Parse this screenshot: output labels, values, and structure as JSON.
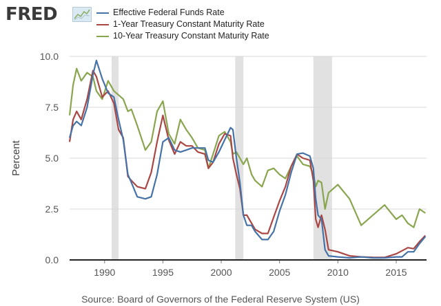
{
  "header": {
    "logo_text": "FRED",
    "logo_badge_icon": "line-chart-icon"
  },
  "source_note": "Source: Board of Governors of the Federal Reserve System (US)",
  "chart_data": {
    "type": "line",
    "title": "",
    "xlabel": "",
    "ylabel": "Percent",
    "xlim": [
      1987.0,
      2017.6
    ],
    "ylim": [
      0,
      10
    ],
    "x_ticks": [
      1990,
      1995,
      2000,
      2005,
      2010,
      2015
    ],
    "y_ticks": [
      0,
      2.5,
      5,
      7.5,
      10
    ],
    "y_tick_labels": [
      "0.0",
      "2.5",
      "5.0",
      "7.5",
      "10.0"
    ],
    "grid": "horizontal",
    "legend_position": "top",
    "recessions": [
      [
        1990.6,
        1991.2
      ],
      [
        2001.2,
        2001.9
      ],
      [
        2007.9,
        2009.5
      ]
    ],
    "series": [
      {
        "name": "Effective Federal Funds Rate",
        "color": "#4572a7",
        "x": [
          1987.0,
          1987.3,
          1987.6,
          1988.0,
          1988.5,
          1989.0,
          1989.3,
          1989.8,
          1990.3,
          1990.8,
          1991.2,
          1991.6,
          1992.0,
          1992.3,
          1992.8,
          1993.5,
          1994.0,
          1994.5,
          1995.0,
          1995.5,
          1996.0,
          1996.5,
          1997.0,
          1997.5,
          1998.0,
          1998.6,
          1998.9,
          1999.3,
          1999.8,
          2000.3,
          2000.8,
          2001.0,
          2001.3,
          2001.6,
          2001.9,
          2002.2,
          2002.6,
          2002.9,
          2003.5,
          2004.0,
          2004.5,
          2005.0,
          2005.5,
          2006.0,
          2006.5,
          2007.0,
          2007.6,
          2007.9,
          2008.1,
          2008.3,
          2008.6,
          2008.9,
          2009.2,
          2010.0,
          2011.0,
          2012.0,
          2013.0,
          2014.0,
          2015.0,
          2015.5,
          2016.0,
          2016.5,
          2017.0,
          2017.5
        ],
        "values": [
          6.0,
          6.6,
          6.8,
          6.6,
          7.5,
          9.1,
          9.8,
          8.9,
          8.2,
          8.0,
          6.9,
          5.9,
          4.2,
          3.8,
          3.1,
          3.0,
          3.1,
          4.2,
          5.8,
          6.0,
          5.4,
          5.3,
          5.4,
          5.5,
          5.5,
          5.5,
          4.9,
          4.8,
          5.3,
          5.9,
          6.5,
          6.4,
          5.0,
          3.8,
          2.2,
          1.7,
          1.7,
          1.4,
          1.0,
          1.0,
          1.4,
          2.4,
          3.2,
          4.3,
          5.2,
          5.25,
          5.1,
          4.5,
          3.0,
          2.2,
          2.0,
          0.5,
          0.2,
          0.15,
          0.1,
          0.15,
          0.1,
          0.1,
          0.15,
          0.15,
          0.4,
          0.4,
          0.8,
          1.15
        ]
      },
      {
        "name": "1-Year Treasury Constant Maturity Rate",
        "color": "#aa4643",
        "x": [
          1987.0,
          1987.3,
          1987.6,
          1988.0,
          1988.5,
          1989.0,
          1989.3,
          1989.8,
          1990.3,
          1990.8,
          1991.2,
          1991.6,
          1992.0,
          1992.3,
          1992.8,
          1993.5,
          1994.0,
          1994.5,
          1995.0,
          1995.5,
          1996.0,
          1996.5,
          1997.0,
          1997.5,
          1998.0,
          1998.6,
          1998.9,
          1999.3,
          1999.8,
          2000.3,
          2000.8,
          2001.0,
          2001.3,
          2001.6,
          2001.9,
          2002.2,
          2002.6,
          2002.9,
          2003.5,
          2004.0,
          2004.5,
          2005.0,
          2005.5,
          2006.0,
          2006.5,
          2007.0,
          2007.6,
          2007.9,
          2008.1,
          2008.3,
          2008.6,
          2008.9,
          2009.2,
          2010.0,
          2011.0,
          2012.0,
          2013.0,
          2014.0,
          2015.0,
          2015.5,
          2016.0,
          2016.5,
          2017.0,
          2017.5
        ],
        "values": [
          5.8,
          6.9,
          7.3,
          6.9,
          7.9,
          9.3,
          9.0,
          8.0,
          8.3,
          7.7,
          6.4,
          6.0,
          4.1,
          3.9,
          3.6,
          3.5,
          4.3,
          5.8,
          7.1,
          5.9,
          5.2,
          5.8,
          5.6,
          5.6,
          5.3,
          5.2,
          4.5,
          4.8,
          5.7,
          6.2,
          6.1,
          5.0,
          4.2,
          3.5,
          2.2,
          2.2,
          1.8,
          1.5,
          1.3,
          1.3,
          2.1,
          2.9,
          3.6,
          4.6,
          5.2,
          5.0,
          4.9,
          3.9,
          2.0,
          1.6,
          2.2,
          1.5,
          0.5,
          0.4,
          0.2,
          0.15,
          0.13,
          0.12,
          0.3,
          0.45,
          0.6,
          0.55,
          0.9,
          1.2
        ]
      },
      {
        "name": "10-Year Treasury Constant Maturity Rate",
        "color": "#89a54e",
        "x": [
          1987.0,
          1987.3,
          1987.6,
          1988.0,
          1988.5,
          1989.0,
          1989.3,
          1989.8,
          1990.3,
          1990.8,
          1991.2,
          1991.6,
          1992.0,
          1992.3,
          1992.8,
          1993.5,
          1994.0,
          1994.5,
          1995.0,
          1995.5,
          1996.0,
          1996.5,
          1997.0,
          1997.5,
          1998.0,
          1998.6,
          1998.9,
          1999.3,
          1999.8,
          2000.3,
          2000.8,
          2001.0,
          2001.3,
          2001.6,
          2001.9,
          2002.2,
          2002.6,
          2002.9,
          2003.5,
          2004.0,
          2004.5,
          2005.0,
          2005.5,
          2006.0,
          2006.5,
          2007.0,
          2007.6,
          2007.9,
          2008.1,
          2008.3,
          2008.6,
          2008.9,
          2009.2,
          2010.0,
          2011.0,
          2012.0,
          2013.0,
          2014.0,
          2015.0,
          2015.5,
          2016.0,
          2016.5,
          2017.0,
          2017.5
        ],
        "values": [
          7.1,
          8.6,
          9.4,
          8.8,
          9.2,
          9.0,
          8.3,
          7.9,
          8.8,
          8.3,
          8.1,
          7.9,
          7.3,
          7.4,
          6.6,
          5.4,
          5.8,
          7.3,
          7.8,
          6.2,
          5.7,
          6.9,
          6.4,
          6.0,
          5.5,
          5.4,
          4.5,
          5.2,
          6.1,
          6.3,
          5.8,
          5.2,
          5.3,
          5.0,
          4.7,
          5.0,
          4.2,
          3.9,
          3.6,
          4.4,
          4.5,
          4.2,
          4.0,
          4.6,
          5.1,
          4.7,
          4.6,
          4.2,
          3.6,
          3.9,
          3.8,
          2.5,
          3.3,
          3.7,
          3.0,
          1.7,
          2.2,
          2.7,
          2.0,
          2.2,
          1.8,
          1.6,
          2.5,
          2.3
        ]
      }
    ]
  }
}
